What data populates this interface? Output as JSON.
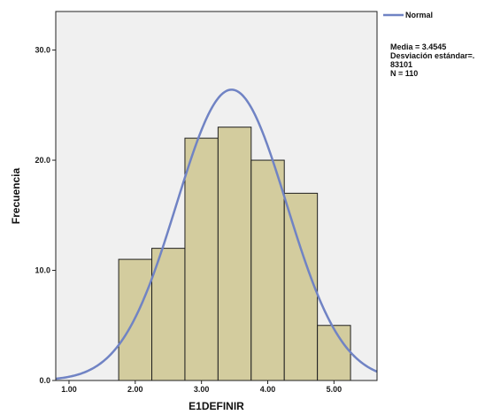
{
  "chart_data": {
    "type": "bar",
    "subtype": "histogram-with-normal-curve",
    "xlabel": "E1DEFINIR",
    "ylabel": "Frecuencia",
    "xlim": [
      0.8,
      5.65
    ],
    "ylim": [
      0,
      33.5
    ],
    "x_ticks": [
      1,
      2,
      3,
      4,
      5
    ],
    "x_tick_labels": [
      "1.00",
      "2.00",
      "3.00",
      "4.00",
      "5.00"
    ],
    "y_ticks": [
      0,
      10,
      20,
      30
    ],
    "y_tick_labels": [
      "0.0",
      "10.0",
      "20.0",
      "30.0"
    ],
    "grid": false,
    "bins": [
      {
        "start": 1.75,
        "end": 2.25,
        "count": 11
      },
      {
        "start": 2.25,
        "end": 2.75,
        "count": 12
      },
      {
        "start": 2.75,
        "end": 3.25,
        "count": 22
      },
      {
        "start": 3.25,
        "end": 3.75,
        "count": 23
      },
      {
        "start": 3.75,
        "end": 4.25,
        "count": 20
      },
      {
        "start": 4.25,
        "end": 4.75,
        "count": 17
      },
      {
        "start": 4.75,
        "end": 5.25,
        "count": 5
      }
    ],
    "normal_curve": {
      "mean": 3.4545,
      "sd": 0.83101,
      "n": 110,
      "bin_width": 0.5
    },
    "legend": {
      "position": "top-right",
      "label": "Normal"
    },
    "stats_lines": [
      "Media = 3.4545",
      "Desviación estándar=.",
      "83101",
      "N = 110"
    ],
    "colors": {
      "bar_fill": "#d3cc9e",
      "bar_stroke": "#1f1f1f",
      "curve": "#7083c4",
      "plot_bg": "#f0f0f0",
      "frame": "#222222"
    }
  }
}
